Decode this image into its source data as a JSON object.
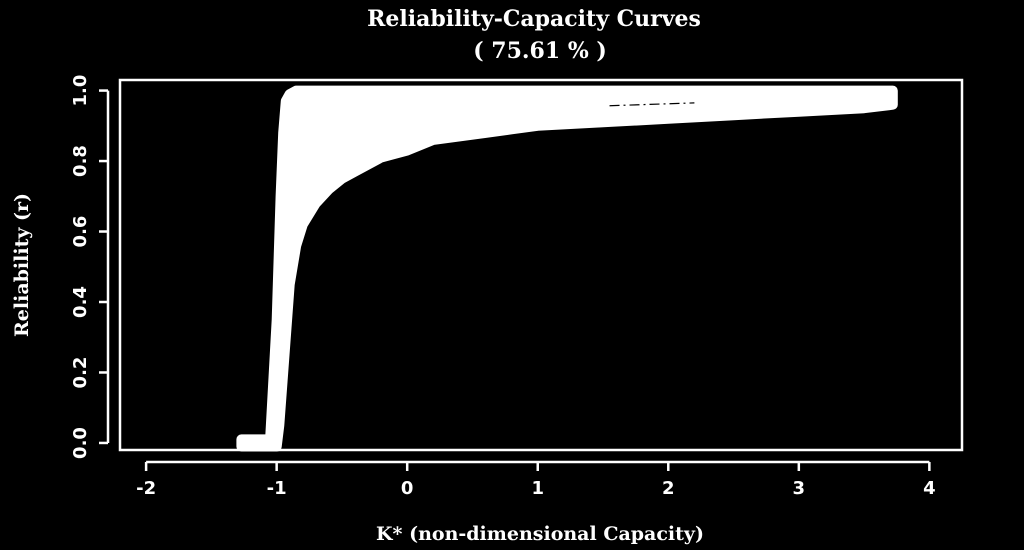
{
  "chart_data": {
    "type": "area",
    "title": "Reliability-Capacity Curves",
    "subtitle": "( 75.61 % )",
    "xlabel": "K* (non-dimensional Capacity)",
    "ylabel": "Reliability (r)",
    "xlim": [
      -2.2,
      4.25
    ],
    "ylim": [
      -0.02,
      1.03
    ],
    "x_ticks": [
      -2,
      -1,
      0,
      1,
      2,
      3,
      4
    ],
    "x_tick_labels": [
      "-2",
      "-1",
      "0",
      "1",
      "2",
      "3",
      "4"
    ],
    "y_ticks": [
      0.0,
      0.2,
      0.4,
      0.6,
      0.8,
      1.0
    ],
    "y_tick_labels": [
      "0.0",
      "0.2",
      "0.4",
      "0.6",
      "0.8",
      "1.0"
    ],
    "grid": false,
    "legend": "none",
    "series": [
      {
        "role": "upper-envelope",
        "x": [
          -1.27,
          -1.2,
          -1.05,
          -1.0,
          -0.97,
          -0.95,
          -0.93,
          -0.9,
          -0.85,
          -0.5,
          0.0,
          1.0,
          2.0,
          3.0,
          3.72
        ],
        "values": [
          0.01,
          0.01,
          0.01,
          0.35,
          0.7,
          0.88,
          0.97,
          0.99,
          1.0,
          1.0,
          1.0,
          1.0,
          1.0,
          1.0,
          1.0
        ]
      },
      {
        "role": "lower-envelope",
        "x": [
          -1.27,
          -1.0,
          -0.98,
          -0.95,
          -0.92,
          -0.9,
          -0.85,
          -0.8,
          -0.7,
          -0.6,
          -0.5,
          -0.4,
          -0.3,
          -0.2,
          -0.1,
          0.0,
          0.2,
          0.4,
          0.6,
          0.8,
          1.0,
          1.5,
          2.0,
          2.5,
          3.0,
          3.5,
          3.72
        ],
        "values": [
          -0.01,
          -0.01,
          0.05,
          0.2,
          0.35,
          0.45,
          0.56,
          0.62,
          0.68,
          0.72,
          0.75,
          0.77,
          0.79,
          0.81,
          0.82,
          0.83,
          0.86,
          0.87,
          0.88,
          0.89,
          0.9,
          0.91,
          0.92,
          0.93,
          0.94,
          0.95,
          0.96
        ]
      }
    ],
    "annotation_dash": {
      "x": [
        1.55,
        2.2
      ],
      "values": [
        0.957,
        0.965
      ]
    },
    "colors": {
      "background": "#000000",
      "fill": "#ffffff",
      "axes": "#ffffff",
      "dash": "#000000"
    }
  }
}
